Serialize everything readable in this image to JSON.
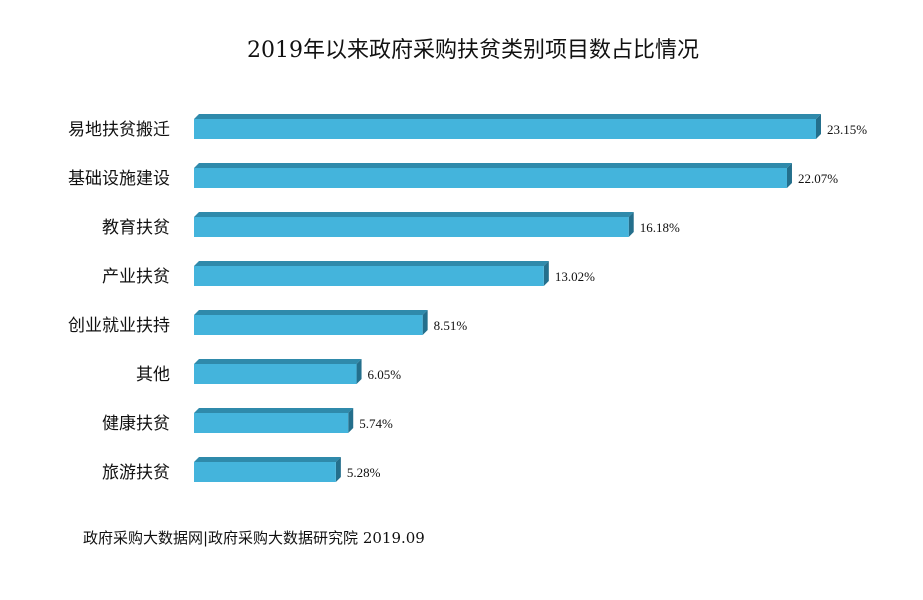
{
  "chart_data": {
    "type": "bar",
    "orientation": "horizontal",
    "title": "2019年以来政府采购扶贫类别项目数占比情况",
    "categories": [
      "易地扶贫搬迁",
      "基础设施建设",
      "教育扶贫",
      "产业扶贫",
      "创业就业扶持",
      "其他",
      "健康扶贫",
      "旅游扶贫"
    ],
    "values": [
      23.15,
      22.07,
      16.18,
      13.02,
      8.51,
      6.05,
      5.74,
      5.28
    ],
    "value_labels": [
      "23.15%",
      "22.07%",
      "16.18%",
      "13.02%",
      "8.51%",
      "6.05%",
      "5.74%",
      "5.28%"
    ],
    "unit": "%",
    "xlim": [
      0,
      23.15
    ],
    "grid": false,
    "legend": "none",
    "bar_style": "3d",
    "colors": {
      "bar_front": "#44b4dc",
      "bar_top": "#2f8aab",
      "bar_side": "#246f8c"
    },
    "source": "政府采购大数据网|政府采购大数据研究院  2019.09"
  }
}
